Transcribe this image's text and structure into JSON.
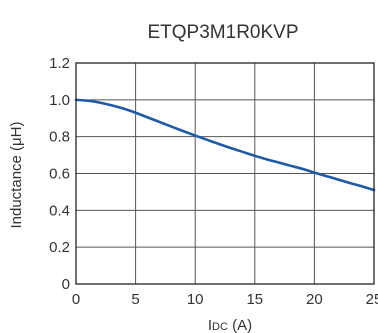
{
  "chart_data": {
    "type": "line",
    "title": "ETQP3M1R0KVP",
    "xlabel_main": "I",
    "xlabel_sub": "DC",
    "xlabel_unit": " (A)",
    "ylabel": "Inductance (μH)",
    "xlim": [
      0,
      25
    ],
    "ylim": [
      0,
      1.2
    ],
    "x_ticks": [
      "0",
      "5",
      "10",
      "15",
      "20",
      "25"
    ],
    "y_ticks": [
      "0",
      "0.2",
      "0.4",
      "0.6",
      "0.8",
      "1.0",
      "1.2"
    ],
    "grid": true,
    "series": [
      {
        "color": "#1f5aa6",
        "x": [
          0,
          1,
          2,
          3,
          4,
          5,
          6,
          7,
          8,
          9,
          10,
          11,
          12,
          13,
          14,
          15,
          16,
          17,
          18,
          19,
          20,
          21,
          22,
          23,
          24,
          25
        ],
        "y": [
          1.0,
          0.995,
          0.985,
          0.97,
          0.952,
          0.93,
          0.905,
          0.88,
          0.855,
          0.83,
          0.806,
          0.783,
          0.76,
          0.738,
          0.717,
          0.696,
          0.677,
          0.66,
          0.642,
          0.625,
          0.605,
          0.586,
          0.567,
          0.548,
          0.53,
          0.51
        ]
      }
    ]
  }
}
